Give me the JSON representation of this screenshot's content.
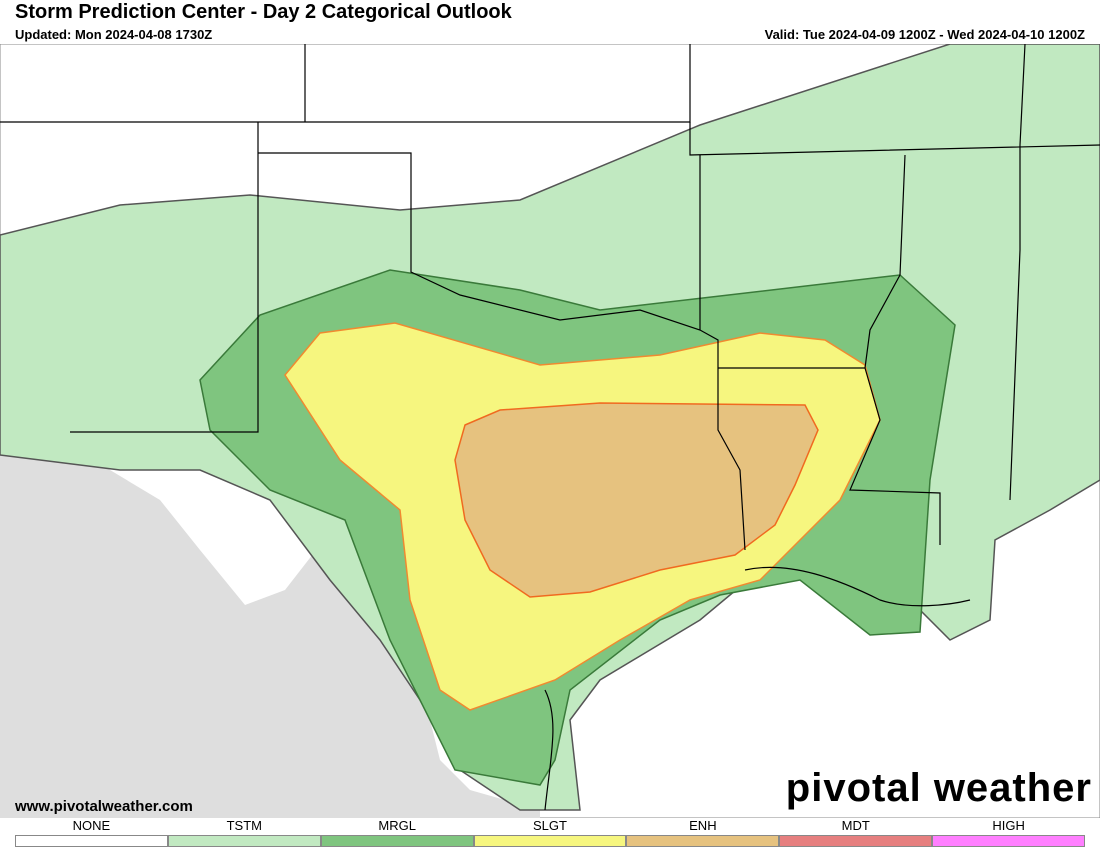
{
  "header": {
    "title": "Storm Prediction Center - Day 2 Categorical Outlook",
    "updated": "Updated: Mon 2024-04-08 1730Z",
    "valid": "Valid: Tue 2024-04-09 1200Z - Wed 2024-04-10 1200Z"
  },
  "footer": {
    "website": "www.pivotalweather.com",
    "logo": "pivotal weather"
  },
  "legend": {
    "items": [
      {
        "label": "NONE",
        "color": "#ffffff"
      },
      {
        "label": "TSTM",
        "color": "#c1e9c1"
      },
      {
        "label": "MRGL",
        "color": "#7fc57f"
      },
      {
        "label": "SLGT",
        "color": "#f6f67f"
      },
      {
        "label": "ENH",
        "color": "#e6c27f"
      },
      {
        "label": "MDT",
        "color": "#e67f7f"
      },
      {
        "label": "HIGH",
        "color": "#ff7fff"
      }
    ]
  }
}
